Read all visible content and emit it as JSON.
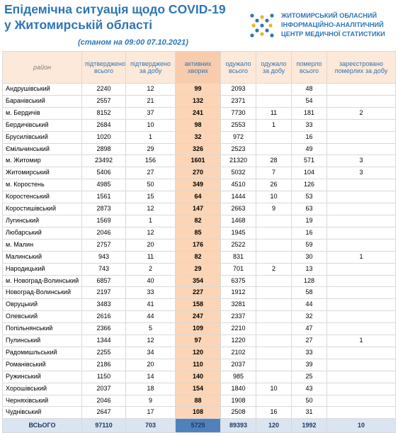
{
  "header": {
    "title_line1": "Епідемічна ситуація щодо COVID-19",
    "title_line2": "у Житомирській області",
    "subtitle": "(станом на 09:00 07.10.2021)",
    "org_line1": "ЖИТОМИРСЬКИЙ ОБЛАСНИЙ",
    "org_line2": "ІНФОРМАЦІЙНО-АНАЛІТИЧНИЙ",
    "org_line3": "ЦЕНТР МЕДИЧНОЇ СТАТИСТИКИ",
    "logo_icon": "x-cross-logo-icon",
    "colors": {
      "brand": "#2e75b6",
      "accent": "#f0b323"
    }
  },
  "table": {
    "columns": [
      "район",
      "підтверджено всього",
      "підтверджено за добу",
      "активних хворих",
      "одужало всього",
      "одужало за добу",
      "померло всього",
      "зареєстровано померлих за добу"
    ],
    "rows": [
      [
        "Андрушівський",
        "2240",
        "12",
        "99",
        "2093",
        "",
        "48",
        ""
      ],
      [
        "Баранівський",
        "2557",
        "21",
        "132",
        "2371",
        "",
        "54",
        ""
      ],
      [
        "м. Бердичів",
        "8152",
        "37",
        "241",
        "7730",
        "11",
        "181",
        "2"
      ],
      [
        "Бердичівський",
        "2684",
        "10",
        "98",
        "2553",
        "1",
        "33",
        ""
      ],
      [
        "Брусилівський",
        "1020",
        "1",
        "32",
        "972",
        "",
        "16",
        ""
      ],
      [
        "Ємільчинський",
        "2898",
        "29",
        "326",
        "2523",
        "",
        "49",
        ""
      ],
      [
        "м. Житомир",
        "23492",
        "156",
        "1601",
        "21320",
        "28",
        "571",
        "3"
      ],
      [
        "Житомирський",
        "5406",
        "27",
        "270",
        "5032",
        "7",
        "104",
        "3"
      ],
      [
        "м. Коростень",
        "4985",
        "50",
        "349",
        "4510",
        "26",
        "126",
        ""
      ],
      [
        "Коростенський",
        "1561",
        "15",
        "64",
        "1444",
        "10",
        "53",
        ""
      ],
      [
        "Коростишівський",
        "2873",
        "12",
        "147",
        "2663",
        "9",
        "63",
        ""
      ],
      [
        "Лугинський",
        "1569",
        "1",
        "82",
        "1468",
        "",
        "19",
        ""
      ],
      [
        "Любарський",
        "2046",
        "12",
        "85",
        "1945",
        "",
        "16",
        ""
      ],
      [
        "м. Малин",
        "2757",
        "20",
        "176",
        "2522",
        "",
        "59",
        ""
      ],
      [
        "Малинський",
        "943",
        "11",
        "82",
        "831",
        "",
        "30",
        "1"
      ],
      [
        "Народицький",
        "743",
        "2",
        "29",
        "701",
        "2",
        "13",
        ""
      ],
      [
        "м. Новоград-Волинський",
        "6857",
        "40",
        "354",
        "6375",
        "",
        "128",
        ""
      ],
      [
        "Новоград-Волинський",
        "2197",
        "33",
        "227",
        "1912",
        "",
        "58",
        ""
      ],
      [
        "Овруцький",
        "3483",
        "41",
        "158",
        "3281",
        "",
        "44",
        ""
      ],
      [
        "Олевський",
        "2616",
        "44",
        "247",
        "2337",
        "",
        "32",
        ""
      ],
      [
        "Попільнянський",
        "2366",
        "5",
        "109",
        "2210",
        "",
        "47",
        ""
      ],
      [
        "Пулинський",
        "1344",
        "12",
        "97",
        "1220",
        "",
        "27",
        "1"
      ],
      [
        "Радомишльський",
        "2255",
        "34",
        "120",
        "2102",
        "",
        "33",
        ""
      ],
      [
        "Романівський",
        "2186",
        "20",
        "110",
        "2037",
        "",
        "39",
        ""
      ],
      [
        "Ружинський",
        "1150",
        "14",
        "140",
        "985",
        "",
        "25",
        ""
      ],
      [
        "Хорошівський",
        "2037",
        "18",
        "154",
        "1840",
        "10",
        "43",
        ""
      ],
      [
        "Черняхівський",
        "2046",
        "9",
        "88",
        "1908",
        "",
        "50",
        ""
      ],
      [
        "Чуднівський",
        "2647",
        "17",
        "108",
        "2508",
        "16",
        "31",
        ""
      ]
    ],
    "total": [
      "ВСЬОГО",
      "97110",
      "703",
      "5725",
      "89393",
      "120",
      "1992",
      "10"
    ]
  }
}
